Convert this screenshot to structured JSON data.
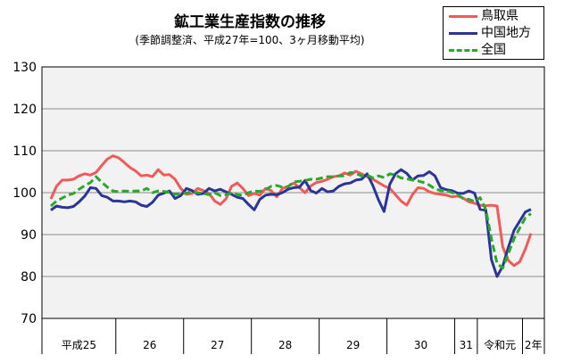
{
  "chart_data": {
    "type": "line",
    "title": "鉱工業生産指数の推移",
    "subtitle": "(季節調整済、平成27年=100、3ヶ月移動平均)",
    "ylim": [
      70,
      130
    ],
    "yticks": [
      "130",
      "120",
      "110",
      "100",
      "90",
      "80",
      "70"
    ],
    "grid": true,
    "legend_position": "top-right",
    "year_labels": [
      "平成25",
      "26",
      "27",
      "28",
      "29",
      "30",
      "31",
      "令和元",
      "2年"
    ],
    "year_month_counts": [
      12,
      12,
      12,
      12,
      12,
      12,
      4,
      8,
      10
    ],
    "series": [
      {
        "name": "鳥取県",
        "color": "#f25a5a",
        "dash": "solid",
        "values": [
          98.5,
          101.5,
          103.0,
          103.0,
          103.2,
          104.0,
          104.5,
          104.2,
          104.8,
          106.5,
          108.0,
          108.8,
          108.3,
          107.2,
          106.0,
          105.2,
          104.0,
          104.2,
          103.8,
          105.5,
          104.2,
          104.3,
          103.2,
          101.0,
          99.6,
          99.8,
          101.0,
          100.5,
          99.8,
          98.0,
          97.2,
          98.5,
          101.5,
          102.3,
          101.0,
          99.3,
          99.8,
          99.4,
          101.0,
          100.5,
          99.0,
          101.0,
          101.5,
          102.3,
          101.2,
          100.0,
          101.6,
          102.4,
          102.7,
          103.2,
          103.8,
          104.0,
          104.7,
          104.2,
          105.1,
          104.5,
          103.8,
          103.2,
          102.4,
          101.6,
          101.0,
          99.5,
          98.0,
          97.0,
          99.5,
          101.2,
          101.0,
          100.2,
          99.8,
          99.6,
          99.4,
          99.0,
          99.2,
          98.7,
          97.8,
          97.5,
          97.0,
          96.9,
          97.0,
          96.8,
          87.0,
          83.8,
          82.6,
          83.5,
          86.5,
          90.3
        ]
      },
      {
        "name": "中国地方",
        "color": "#2b3596",
        "dash": "solid",
        "values": [
          95.8,
          96.8,
          96.5,
          96.4,
          96.7,
          97.8,
          99.2,
          101.2,
          101.0,
          99.3,
          98.9,
          98.0,
          98.0,
          97.8,
          98.0,
          97.8,
          97.0,
          96.7,
          97.7,
          99.4,
          99.9,
          100.4,
          98.6,
          99.3,
          101.0,
          100.5,
          99.6,
          99.8,
          101.0,
          100.4,
          100.8,
          100.2,
          99.6,
          98.9,
          98.6,
          97.2,
          95.9,
          98.4,
          99.4,
          99.6,
          99.5,
          100.0,
          100.8,
          101.2,
          101.3,
          102.9,
          100.5,
          99.9,
          101.0,
          100.2,
          100.4,
          101.5,
          102.1,
          102.3,
          103.0,
          103.2,
          104.5,
          101.7,
          98.3,
          95.5,
          102.0,
          104.5,
          105.5,
          104.6,
          103.0,
          104.0,
          104.1,
          105.0,
          104.0,
          101.2,
          100.7,
          100.5,
          99.9,
          99.8,
          100.4,
          99.9,
          96.0,
          95.8,
          84.0,
          80.0,
          82.5,
          87.0,
          91.0,
          93.2,
          95.4,
          96.0
        ]
      },
      {
        "name": "全国",
        "color": "#2aa82a",
        "dash": "dashed",
        "values": [
          96.8,
          98.0,
          98.7,
          99.4,
          99.8,
          100.8,
          101.7,
          102.4,
          103.8,
          102.5,
          101.3,
          100.4,
          100.2,
          100.4,
          100.3,
          100.4,
          100.4,
          101.0,
          100.0,
          100.4,
          100.3,
          100.0,
          99.6,
          99.8,
          99.9,
          100.2,
          100.0,
          99.8,
          99.5,
          100.0,
          99.3,
          99.5,
          100.0,
          99.5,
          99.4,
          100.0,
          100.4,
          100.3,
          100.7,
          101.5,
          101.7,
          101.3,
          101.4,
          102.6,
          102.7,
          102.9,
          103.2,
          103.2,
          103.5,
          103.8,
          103.8,
          104.0,
          104.0,
          104.8,
          104.6,
          104.0,
          104.2,
          103.5,
          104.0,
          103.6,
          104.5,
          104.2,
          103.5,
          103.3,
          103.0,
          102.8,
          102.4,
          101.8,
          100.9,
          100.5,
          100.5,
          100.0,
          99.6,
          98.6,
          98.4,
          97.9,
          98.8,
          96.0,
          89.0,
          83.1,
          82.0,
          85.5,
          89.0,
          91.5,
          94.0,
          95.0
        ]
      }
    ]
  }
}
